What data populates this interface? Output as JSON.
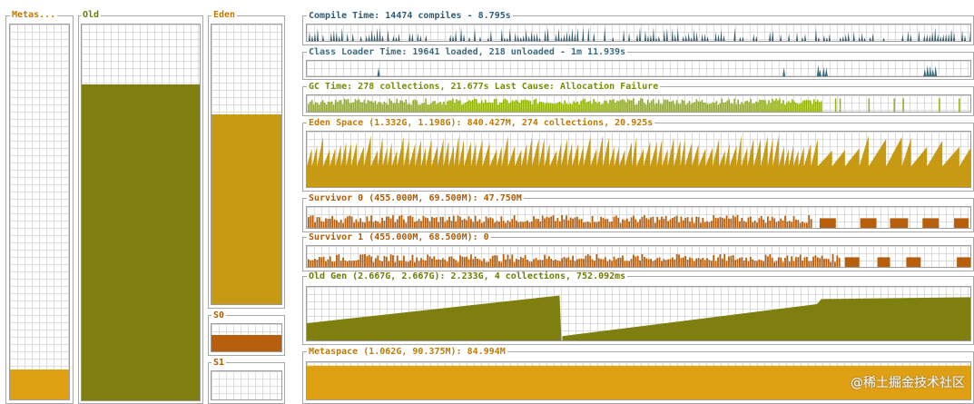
{
  "colors": {
    "compile": "#2e5366",
    "classloader": "#3b6b80",
    "gc": "#94b10e",
    "eden": "#c89a13",
    "survivor": "#b85f0d",
    "old": "#7f7f0f",
    "meta": "#e0a014",
    "title_blue": "#2c5b7b",
    "title_olive": "#7a8a00",
    "title_orange": "#c07a00"
  },
  "bars": {
    "metaspace": {
      "title": "Metas...",
      "fill": 0.08
    },
    "old": {
      "title": "Old",
      "fill": 0.84
    },
    "eden": {
      "title": "Eden",
      "fill": 0.68
    },
    "s0": {
      "title": "S0",
      "fill": 0.6
    },
    "s1": {
      "title": "S1",
      "fill": 0.0
    }
  },
  "graphs": {
    "compile": {
      "title": "Compile Time: 14474 compiles - 8.795s"
    },
    "classloader": {
      "title": "Class Loader Time: 19641 loaded, 218 unloaded - 1m 11.939s"
    },
    "gc": {
      "title": "GC Time: 278 collections, 21.677s  Last Cause: Allocation Failure"
    },
    "eden": {
      "title": "Eden Space (1.332G, 1.198G): 840.427M, 274 collections, 20.925s"
    },
    "s0": {
      "title": "Survivor 0 (455.000M, 69.500M): 47.750M"
    },
    "s1": {
      "title": "Survivor 1 (455.000M, 68.500M): 0"
    },
    "old": {
      "title": "Old Gen (2.667G, 2.667G): 2.233G, 4 collections, 752.092ms"
    },
    "meta": {
      "title": "Metaspace (1.062G, 90.375M): 84.994M"
    }
  },
  "watermark": "@稀土掘金技术社区"
}
